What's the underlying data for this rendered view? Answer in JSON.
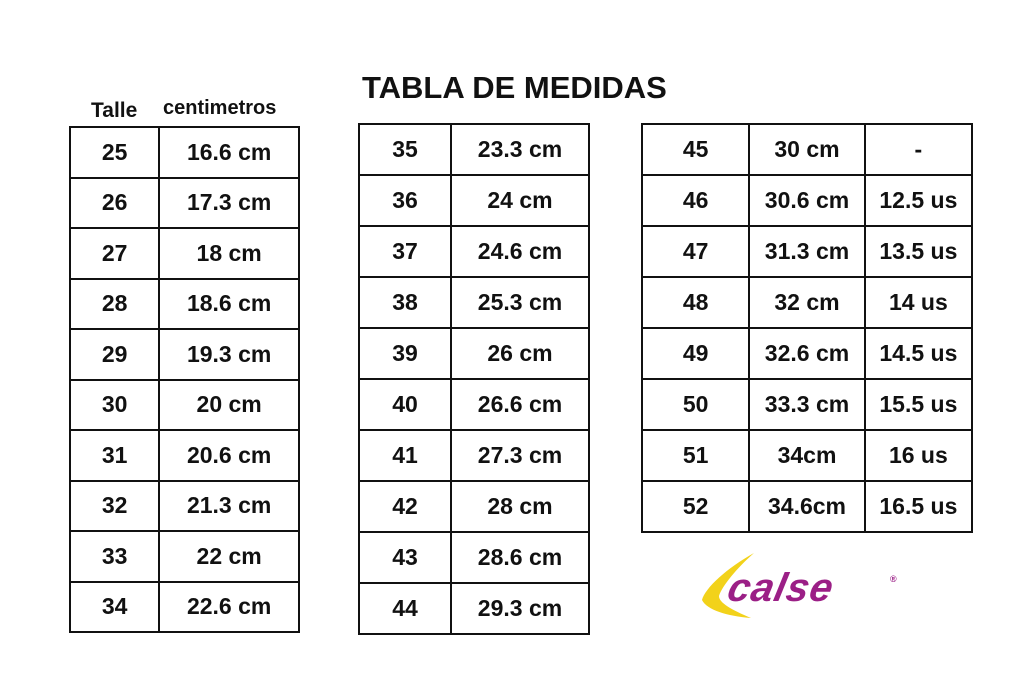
{
  "title": "TABLA DE MEDIDAS",
  "headers": {
    "size": "Talle",
    "cm": "centimetros"
  },
  "table1": [
    [
      "25",
      "16.6 cm"
    ],
    [
      "26",
      "17.3  cm"
    ],
    [
      "27",
      "18 cm"
    ],
    [
      "28",
      "18.6 cm"
    ],
    [
      "29",
      "19.3 cm"
    ],
    [
      "30",
      "20 cm"
    ],
    [
      "31",
      "20.6 cm"
    ],
    [
      "32",
      "21.3 cm"
    ],
    [
      "33",
      "22 cm"
    ],
    [
      "34",
      "22.6 cm"
    ]
  ],
  "table2": [
    [
      "35",
      "23.3  cm"
    ],
    [
      "36",
      "24 cm"
    ],
    [
      "37",
      "24.6 cm"
    ],
    [
      "38",
      "25.3 cm"
    ],
    [
      "39",
      "26 cm"
    ],
    [
      "40",
      "26.6 cm"
    ],
    [
      "41",
      "27.3 cm"
    ],
    [
      "42",
      "28 cm"
    ],
    [
      "43",
      "28.6 cm"
    ],
    [
      "44",
      "29.3 cm"
    ]
  ],
  "table3": [
    [
      "45",
      "30 cm",
      "-"
    ],
    [
      "46",
      "30.6 cm",
      "12.5 us"
    ],
    [
      "47",
      "31.3 cm",
      "13.5 us"
    ],
    [
      "48",
      "32 cm",
      "14 us"
    ],
    [
      "49",
      "32.6 cm",
      "14.5 us"
    ],
    [
      "50",
      "33.3 cm",
      "15.5 us"
    ],
    [
      "51",
      "34cm",
      "16 us"
    ],
    [
      "52",
      "34.6cm",
      "16.5 us"
    ]
  ],
  "logo": {
    "text": "calse",
    "registered": "®",
    "colors": {
      "swoosh": "#f2d21a",
      "text": "#9b1f86"
    }
  }
}
